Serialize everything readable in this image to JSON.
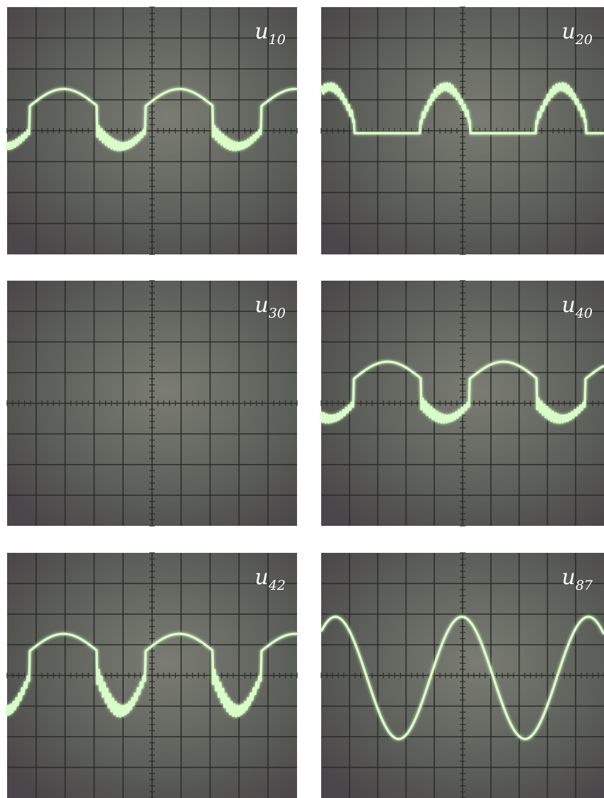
{
  "panels": [
    {
      "label": {
        "symbol": "u",
        "subscript": "10"
      }
    },
    {
      "label": {
        "symbol": "u",
        "subscript": "20"
      }
    },
    {
      "label": {
        "symbol": "u",
        "subscript": "30"
      }
    },
    {
      "label": {
        "symbol": "u",
        "subscript": "40"
      }
    },
    {
      "label": {
        "symbol": "u",
        "subscript": "42"
      }
    },
    {
      "label": {
        "symbol": "u",
        "subscript": "87"
      }
    }
  ]
}
